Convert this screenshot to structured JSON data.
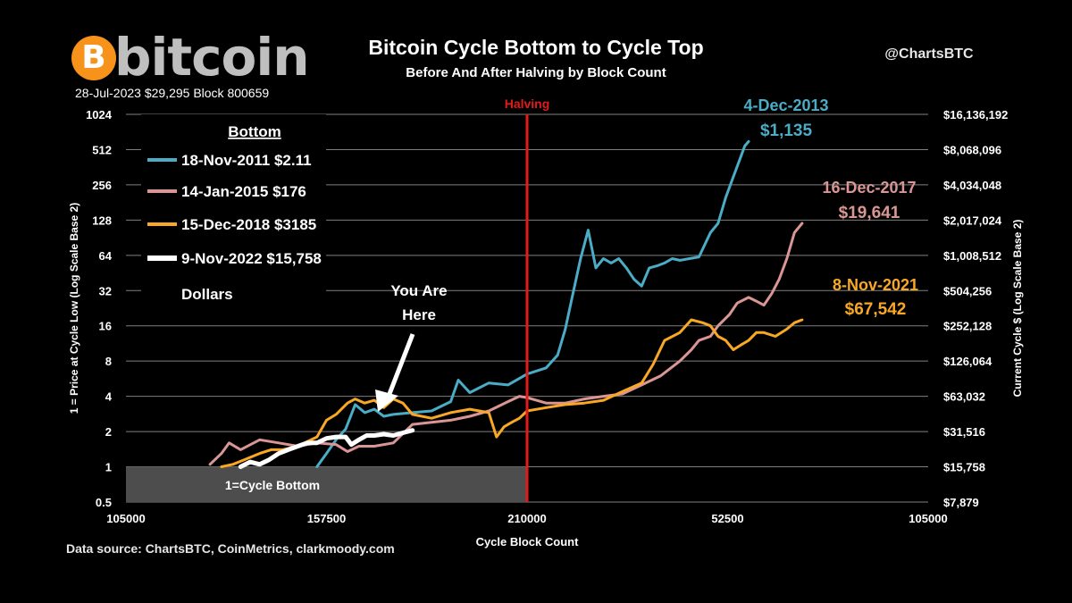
{
  "header": {
    "logo_text": "bitcoin",
    "logo_symbol": "B",
    "caption": "28-Jul-2023 $29,295 Block 800659",
    "title": "Bitcoin Cycle Bottom to Cycle Top",
    "subtitle": "Before And After Halving by Block Count",
    "handle": "@ChartsBTC",
    "source": "Data source:  ChartsBTC, CoinMetrics, clarkmoody.com"
  },
  "colors": {
    "background": "#000000",
    "cycle_2011": "#4bacc6",
    "cycle_2015": "#d99694",
    "cycle_2018": "#f9a825",
    "cycle_2022": "#ffffff",
    "halving": "#e31a1c",
    "bitcoin_orange": "#f7931a"
  },
  "chart_data": {
    "type": "line",
    "title": "Bitcoin Cycle Bottom to Cycle Top",
    "subtitle": "Before And After Halving by Block Count",
    "xlabel": "Cycle Block Count",
    "ylabel": "1 = Price at Cycle Low (Log Scale Base 2)",
    "y2label": "Current Cycle $ (Log Scale Base 2)",
    "x_ticks": [
      "105000",
      "157500",
      "210000",
      "52500",
      "105000"
    ],
    "y_scale": "log2",
    "ylim": [
      0.5,
      1024
    ],
    "y_ticks": [
      "0.5",
      "1",
      "2",
      "4",
      "8",
      "16",
      "32",
      "64",
      "128",
      "256",
      "512",
      "1024"
    ],
    "y2_ticks": [
      "$7,879",
      "$15,758",
      "$31,516",
      "$63,032",
      "$126,064",
      "$252,128",
      "$504,256",
      "$1,008,512",
      "$2,017,024",
      "$4,034,048",
      "$8,068,096",
      "$16,136,192"
    ],
    "grid": true,
    "legend_title": "Bottom",
    "legend_footer": "Dollars",
    "legend_position": "top-left",
    "halving_label": "Halving",
    "floor_label": "1=Cycle Bottom",
    "series": [
      {
        "name": "18-Nov-2011 $2.11",
        "color": "#4bacc6",
        "width": 3,
        "x": [
          155000,
          157500,
          160000,
          162500,
          165000,
          167500,
          170000,
          172500,
          175000,
          180000,
          185000,
          190000,
          192000,
          195000,
          200000,
          205000,
          210000,
          215000,
          218000,
          220000,
          222000,
          224000,
          226000,
          228000,
          230000,
          232000,
          234000,
          236000,
          238000,
          240000,
          242000,
          244000,
          246000,
          248000,
          250000,
          252500,
          255000,
          258000,
          260000,
          262000,
          264000,
          266000,
          267000,
          268000
        ],
        "y": [
          1,
          1.3,
          1.7,
          2.1,
          3.4,
          2.9,
          3.1,
          2.7,
          2.8,
          2.9,
          3.0,
          3.6,
          5.5,
          4.3,
          5.2,
          5.0,
          6.2,
          7.0,
          9,
          15,
          30,
          60,
          105,
          50,
          60,
          55,
          60,
          50,
          40,
          35,
          50,
          52,
          55,
          60,
          58,
          60,
          62,
          100,
          120,
          200,
          300,
          450,
          550,
          600
        ]
      },
      {
        "name": "14-Jan-2015 $176",
        "color": "#d99694",
        "width": 3,
        "x": [
          127000,
          130000,
          132000,
          135000,
          140000,
          145000,
          150000,
          155000,
          160000,
          163000,
          166000,
          170000,
          175000,
          180000,
          185000,
          190000,
          195000,
          200000,
          205000,
          208000,
          210000,
          215000,
          220000,
          225000,
          230000,
          235000,
          240000,
          245000,
          250000,
          253000,
          255000,
          258000,
          260000,
          263000,
          265000,
          268000,
          270000,
          272000,
          274000,
          276000,
          278000,
          280000,
          282000
        ],
        "y": [
          1.05,
          1.3,
          1.6,
          1.4,
          1.7,
          1.6,
          1.5,
          1.6,
          1.55,
          1.35,
          1.5,
          1.5,
          1.6,
          2.3,
          2.4,
          2.5,
          2.7,
          3.0,
          3.6,
          4.0,
          3.9,
          3.5,
          3.5,
          3.8,
          4.0,
          4.2,
          5.0,
          6.0,
          8.0,
          10,
          12,
          13,
          16,
          20,
          25,
          28,
          26,
          24,
          30,
          40,
          60,
          100,
          120
        ]
      },
      {
        "name": "15-Dec-2018 $3185",
        "color": "#f9a825",
        "width": 3,
        "x": [
          130000,
          133000,
          136000,
          140000,
          143000,
          146000,
          150000,
          155000,
          157500,
          160000,
          163000,
          165000,
          167500,
          170000,
          172500,
          175000,
          177500,
          180000,
          185000,
          190000,
          195000,
          200000,
          202000,
          204000,
          206000,
          208000,
          210000,
          215000,
          220000,
          225000,
          230000,
          235000,
          240000,
          243000,
          246000,
          250000,
          253000,
          256000,
          258000,
          260000,
          262000,
          264000,
          266000,
          268000,
          270000,
          272000,
          275000,
          278000,
          280000,
          282000
        ],
        "y": [
          1,
          1.05,
          1.15,
          1.3,
          1.4,
          1.4,
          1.5,
          1.8,
          2.5,
          2.8,
          3.5,
          3.8,
          3.5,
          3.7,
          3.2,
          3.8,
          3.5,
          2.8,
          2.6,
          2.9,
          3.1,
          2.9,
          1.8,
          2.2,
          2.4,
          2.6,
          3.0,
          3.2,
          3.4,
          3.5,
          3.7,
          4.4,
          5.2,
          7.5,
          12,
          14,
          18,
          17,
          16,
          13,
          12,
          10,
          11,
          12,
          14,
          14,
          13,
          15,
          17,
          18
        ]
      },
      {
        "name": "9-Nov-2022 $15,758",
        "color": "#ffffff",
        "width": 5,
        "x": [
          135000,
          137500,
          140000,
          142500,
          145000,
          147500,
          150000,
          152500,
          155000,
          157500,
          160000,
          162500,
          164000,
          166000,
          168000,
          170000,
          172500,
          175000,
          177500,
          180000
        ],
        "y": [
          1,
          1.1,
          1.05,
          1.15,
          1.3,
          1.4,
          1.5,
          1.6,
          1.6,
          1.75,
          1.8,
          1.8,
          1.55,
          1.7,
          1.85,
          1.85,
          1.9,
          1.85,
          1.95,
          2.05
        ]
      }
    ],
    "annotations": [
      {
        "text_date": "4-Dec-2013",
        "text_price": "$1,135",
        "color": "#4bacc6"
      },
      {
        "text_date": "16-Dec-2017",
        "text_price": "$19,641",
        "color": "#d99694"
      },
      {
        "text_date": "8-Nov-2021",
        "text_price": "$67,542",
        "color": "#f9a825"
      },
      {
        "text_line1": "You Are",
        "text_line2": "Here",
        "color": "#ffffff"
      }
    ]
  }
}
